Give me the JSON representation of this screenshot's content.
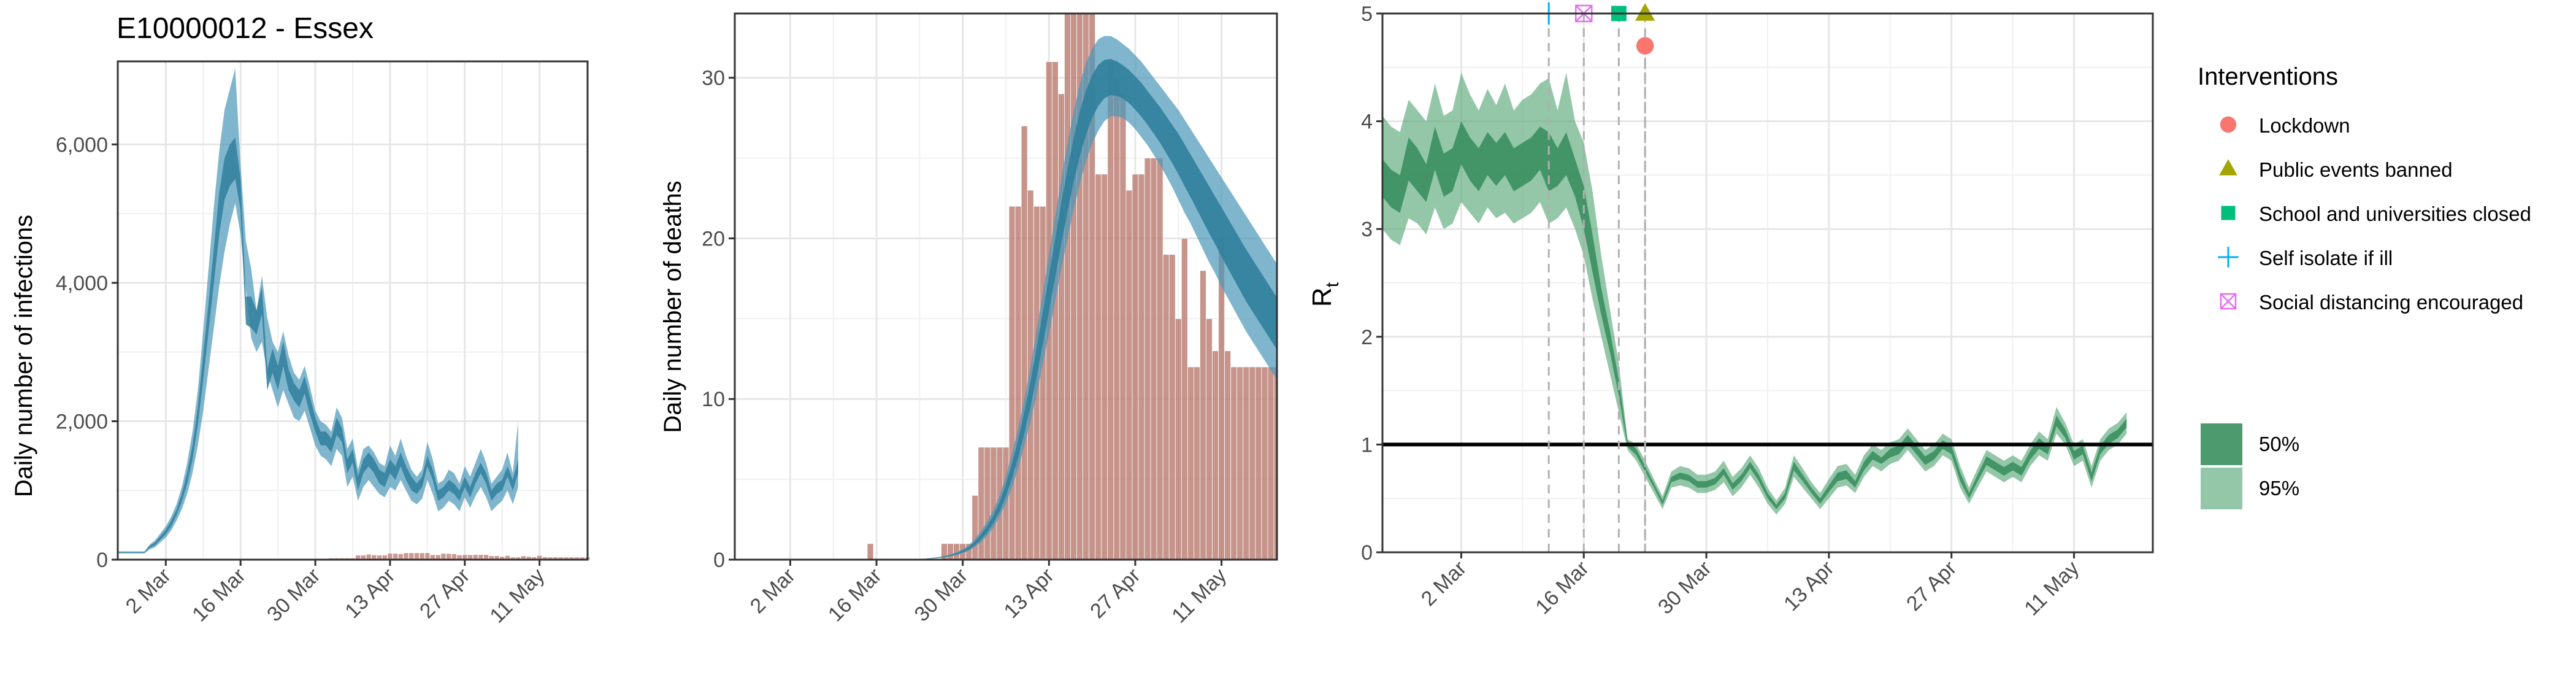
{
  "figure_title": "E10000012 - Essex",
  "date_labels": [
    "2 Mar",
    "16 Mar",
    "30 Mar",
    "13 Apr",
    "27 Apr",
    "11 May"
  ],
  "colors": {
    "infections_band": "#4a97b8",
    "infections_core": "#2f7f9c",
    "deaths_bar": "#b97a6f",
    "rt_band": "#5aa97a",
    "rt_core": "#3a8f5f",
    "vline": "#b0b0b0",
    "lockdown": "#f8766d",
    "public_events": "#a3a500",
    "school": "#00bf7d",
    "self_isolate": "#00b0f6",
    "social_distancing": "#e76bf3"
  },
  "chart_data": [
    {
      "type": "area",
      "id": "infections",
      "title": "E10000012 - Essex",
      "xlabel": "",
      "ylabel": "Daily number of infections",
      "x_start": "2020-02-22",
      "x_ticks": [
        "2 Mar",
        "16 Mar",
        "30 Mar",
        "13 Apr",
        "27 Apr",
        "11 May"
      ],
      "xlim": [
        "2020-02-22",
        "2020-05-20"
      ],
      "ylim": [
        0,
        7200
      ],
      "y_ticks": [
        0,
        2000,
        4000,
        6000
      ],
      "y_tick_labels": [
        "0",
        "2,000",
        "4,000",
        "6,000"
      ],
      "grid": true,
      "band95_low": [
        90,
        90,
        90,
        90,
        90,
        90,
        150,
        180,
        250,
        320,
        420,
        560,
        730,
        950,
        1250,
        1650,
        2150,
        2750,
        3350,
        3950,
        4450,
        4850,
        5150,
        4700,
        3900,
        3200,
        3000,
        3150,
        2700,
        2450,
        2200,
        2450,
        2250,
        2050,
        2000,
        2150,
        1900,
        1650,
        1500,
        1450,
        1350,
        1600,
        1500,
        1050,
        1200,
        850,
        1050,
        1150,
        1050,
        950,
        900,
        1050,
        1000,
        1150,
        1000,
        850,
        800,
        880,
        1150,
        950,
        700,
        750,
        850,
        800,
        700,
        900,
        750,
        920,
        1050,
        900,
        700,
        780,
        850,
        1000,
        800,
        1050
      ],
      "band95_high": [
        120,
        120,
        120,
        120,
        120,
        120,
        220,
        280,
        380,
        480,
        620,
        800,
        1050,
        1400,
        1850,
        2450,
        3300,
        4200,
        5100,
        5900,
        6500,
        6800,
        7100,
        5700,
        4600,
        4200,
        3600,
        4100,
        3500,
        3150,
        3000,
        3300,
        2950,
        2700,
        2600,
        2800,
        2500,
        2150,
        2000,
        1950,
        1850,
        2200,
        2050,
        1600,
        1750,
        1300,
        1600,
        1650,
        1550,
        1400,
        1350,
        1650,
        1500,
        1750,
        1500,
        1300,
        1200,
        1300,
        1700,
        1450,
        1100,
        1150,
        1300,
        1250,
        1100,
        1350,
        1200,
        1400,
        1600,
        1400,
        1100,
        1200,
        1300,
        1550,
        1250,
        2000
      ],
      "band50_low": [
        100,
        100,
        100,
        100,
        100,
        100,
        170,
        210,
        290,
        370,
        480,
        640,
        840,
        1100,
        1450,
        1950,
        2600,
        3300,
        4000,
        4700,
        5200,
        5400,
        5500,
        5050,
        3400,
        3350,
        3250,
        3550,
        2450,
        2700,
        2450,
        2800,
        2450,
        2300,
        2200,
        2400,
        2100,
        1850,
        1650,
        1650,
        1550,
        1800,
        1700,
        1250,
        1400,
        1000,
        1250,
        1350,
        1250,
        1100,
        1050,
        1250,
        1150,
        1350,
        1150,
        1000,
        950,
        1050,
        1350,
        1150,
        850,
        900,
        1000,
        950,
        850,
        1050,
        900,
        1100,
        1250,
        1100,
        850,
        950,
        1000,
        1200,
        1000,
        1250
      ],
      "band50_high": [
        110,
        110,
        110,
        110,
        110,
        110,
        200,
        250,
        340,
        430,
        560,
        720,
        950,
        1250,
        1650,
        2200,
        2950,
        3700,
        4500,
        5300,
        5800,
        6000,
        6100,
        5500,
        3800,
        3800,
        3600,
        3950,
        2750,
        3050,
        2800,
        3150,
        2750,
        2550,
        2450,
        2650,
        2350,
        2050,
        1850,
        1850,
        1750,
        2050,
        1900,
        1450,
        1600,
        1200,
        1450,
        1550,
        1450,
        1300,
        1250,
        1450,
        1350,
        1550,
        1350,
        1200,
        1100,
        1200,
        1500,
        1300,
        1000,
        1050,
        1150,
        1100,
        1000,
        1200,
        1050,
        1250,
        1400,
        1250,
        1000,
        1100,
        1150,
        1350,
        1150,
        1450
      ]
    },
    {
      "type": "bar",
      "id": "deaths",
      "xlabel": "",
      "ylabel": "Daily number of deaths",
      "x_start": "2020-02-22",
      "x_ticks": [
        "2 Mar",
        "16 Mar",
        "30 Mar",
        "13 Apr",
        "27 Apr",
        "11 May"
      ],
      "xlim": [
        "2020-02-22",
        "2020-05-20"
      ],
      "ylim": [
        0,
        34
      ],
      "y_ticks": [
        0,
        10,
        20,
        30
      ],
      "grid": true,
      "bar_values": [
        0,
        0,
        0,
        0,
        0,
        0,
        0,
        0,
        0,
        0,
        0,
        0,
        0,
        0,
        0,
        0,
        0,
        0,
        0,
        0,
        0,
        0,
        1,
        0,
        0,
        0,
        0,
        0,
        0,
        0,
        0,
        0,
        0,
        0,
        1,
        1,
        1,
        1,
        1,
        4,
        7,
        7,
        7,
        7,
        7,
        22,
        22,
        27,
        23,
        22,
        22,
        31,
        31,
        29,
        34,
        34,
        34,
        34,
        34,
        24,
        24,
        31,
        30,
        29,
        23,
        24,
        24,
        25,
        25,
        25,
        19,
        19,
        15,
        20,
        12,
        12,
        18,
        15,
        13,
        20,
        13,
        12,
        12,
        12,
        12,
        12,
        12,
        12,
        12
      ],
      "curve_mean": [
        0,
        0,
        0,
        0,
        0,
        0,
        0,
        0,
        0,
        0,
        0,
        0,
        0,
        0,
        0,
        0,
        0,
        0,
        0,
        0,
        0,
        0,
        0,
        0,
        0,
        0,
        0,
        0,
        0,
        0.02,
        0.03,
        0.05,
        0.08,
        0.12,
        0.17,
        0.25,
        0.36,
        0.5,
        0.7,
        1.0,
        1.4,
        1.9,
        2.5,
        3.3,
        4.3,
        5.5,
        6.9,
        8.5,
        10.3,
        12.3,
        14.4,
        16.6,
        18.8,
        21.0,
        23.0,
        24.9,
        26.5,
        27.8,
        28.8,
        29.5,
        29.9,
        30.0,
        29.9,
        29.7,
        29.4,
        29.0,
        28.6,
        28.1,
        27.6,
        27.1,
        26.5,
        25.9,
        25.3,
        24.6,
        23.9,
        23.2,
        22.5,
        21.8,
        21.1,
        20.4,
        19.7,
        19.0,
        18.3,
        17.6,
        17.0,
        16.4,
        15.8,
        15.2,
        14.6,
        14.1
      ],
      "curve_low": [
        0,
        0,
        0,
        0,
        0,
        0,
        0,
        0,
        0,
        0,
        0,
        0,
        0,
        0,
        0,
        0,
        0,
        0,
        0,
        0,
        0,
        0,
        0,
        0,
        0,
        0,
        0,
        0,
        0,
        0.01,
        0.02,
        0.04,
        0.06,
        0.09,
        0.13,
        0.2,
        0.28,
        0.4,
        0.55,
        0.8,
        1.1,
        1.5,
        2.0,
        2.7,
        3.5,
        4.5,
        5.7,
        7.1,
        8.6,
        10.3,
        12.2,
        14.1,
        16.1,
        18.1,
        20.0,
        21.8,
        23.4,
        24.8,
        25.9,
        26.7,
        27.3,
        27.6,
        27.6,
        27.5,
        27.2,
        26.8,
        26.3,
        25.8,
        25.2,
        24.6,
        23.9,
        23.2,
        22.4,
        21.6,
        20.9,
        20.1,
        19.3,
        18.5,
        17.8,
        17.0,
        16.3,
        15.6,
        14.9,
        14.2,
        13.6,
        13.0,
        12.4,
        11.8,
        11.2,
        10.7
      ],
      "curve_high": [
        0,
        0,
        0,
        0,
        0,
        0,
        0,
        0,
        0,
        0,
        0,
        0,
        0,
        0,
        0,
        0,
        0,
        0,
        0,
        0,
        0,
        0,
        0,
        0,
        0,
        0,
        0,
        0,
        0,
        0.03,
        0.05,
        0.07,
        0.11,
        0.16,
        0.23,
        0.33,
        0.47,
        0.65,
        0.9,
        1.3,
        1.8,
        2.4,
        3.1,
        4.0,
        5.2,
        6.6,
        8.2,
        10.0,
        12.0,
        14.3,
        16.6,
        19.0,
        21.4,
        23.7,
        25.9,
        27.9,
        29.6,
        30.9,
        31.8,
        32.4,
        32.6,
        32.6,
        32.4,
        32.1,
        31.8,
        31.4,
        31.0,
        30.5,
        30.0,
        29.5,
        29.0,
        28.5,
        28.0,
        27.4,
        26.8,
        26.2,
        25.6,
        25.0,
        24.4,
        23.8,
        23.2,
        22.6,
        22.0,
        21.4,
        20.8,
        20.2,
        19.6,
        19.0,
        18.4,
        17.8
      ]
    },
    {
      "type": "area",
      "id": "rt",
      "xlabel": "",
      "ylabel": "R",
      "ylabel_subscript": "t",
      "x_start": "2020-02-22",
      "x_ticks": [
        "2 Mar",
        "16 Mar",
        "30 Mar",
        "13 Apr",
        "27 Apr",
        "11 May"
      ],
      "xlim": [
        "2020-02-22",
        "2020-05-20"
      ],
      "ylim": [
        0,
        5
      ],
      "y_ticks": [
        0,
        1,
        2,
        3,
        4,
        5
      ],
      "grid": true,
      "reference_line": 1,
      "band95_low": [
        3.0,
        2.9,
        2.85,
        3.1,
        3.05,
        2.95,
        3.2,
        3.0,
        3.05,
        3.25,
        3.15,
        3.05,
        3.2,
        3.1,
        3.15,
        3.05,
        3.1,
        3.15,
        3.25,
        3.05,
        3.1,
        3.2,
        3.0,
        2.75,
        2.35,
        2.0,
        1.65,
        1.3,
        0.95,
        0.85,
        0.7,
        0.55,
        0.4,
        0.6,
        0.62,
        0.6,
        0.55,
        0.55,
        0.58,
        0.65,
        0.52,
        0.6,
        0.72,
        0.6,
        0.45,
        0.35,
        0.45,
        0.7,
        0.6,
        0.5,
        0.4,
        0.5,
        0.6,
        0.62,
        0.55,
        0.7,
        0.8,
        0.75,
        0.82,
        0.85,
        0.95,
        0.85,
        0.75,
        0.8,
        0.9,
        0.85,
        0.6,
        0.45,
        0.6,
        0.75,
        0.7,
        0.65,
        0.7,
        0.65,
        0.8,
        0.9,
        0.85,
        1.1,
        1.0,
        0.8,
        0.85,
        0.6,
        0.85,
        0.95,
        1.0,
        1.1
      ],
      "band95_high": [
        4.05,
        3.95,
        3.9,
        4.2,
        4.1,
        4.0,
        4.35,
        4.05,
        4.1,
        4.45,
        4.25,
        4.1,
        4.3,
        4.15,
        4.35,
        4.1,
        4.2,
        4.25,
        4.35,
        4.4,
        4.1,
        4.45,
        4.0,
        3.8,
        3.35,
        2.75,
        2.25,
        1.75,
        1.05,
        1.0,
        0.85,
        0.68,
        0.52,
        0.75,
        0.8,
        0.78,
        0.72,
        0.72,
        0.75,
        0.85,
        0.7,
        0.78,
        0.9,
        0.78,
        0.6,
        0.48,
        0.6,
        0.9,
        0.78,
        0.65,
        0.55,
        0.68,
        0.8,
        0.82,
        0.72,
        0.9,
        1.0,
        0.95,
        1.02,
        1.05,
        1.15,
        1.05,
        0.95,
        1.0,
        1.1,
        1.05,
        0.8,
        0.6,
        0.78,
        0.95,
        0.9,
        0.85,
        0.9,
        0.85,
        1.0,
        1.12,
        1.05,
        1.35,
        1.2,
        1.0,
        1.05,
        0.8,
        1.05,
        1.15,
        1.2,
        1.3
      ],
      "band50_low": [
        3.3,
        3.2,
        3.15,
        3.45,
        3.35,
        3.25,
        3.55,
        3.3,
        3.35,
        3.6,
        3.45,
        3.35,
        3.5,
        3.4,
        3.5,
        3.35,
        3.4,
        3.45,
        3.55,
        3.35,
        3.4,
        3.5,
        3.3,
        3.0,
        2.6,
        2.2,
        1.85,
        1.45,
        0.98,
        0.9,
        0.75,
        0.6,
        0.44,
        0.65,
        0.68,
        0.66,
        0.6,
        0.6,
        0.63,
        0.72,
        0.58,
        0.66,
        0.78,
        0.66,
        0.5,
        0.4,
        0.5,
        0.76,
        0.66,
        0.55,
        0.45,
        0.56,
        0.66,
        0.68,
        0.6,
        0.76,
        0.86,
        0.82,
        0.88,
        0.91,
        1.01,
        0.91,
        0.81,
        0.86,
        0.96,
        0.91,
        0.66,
        0.5,
        0.66,
        0.81,
        0.76,
        0.71,
        0.76,
        0.71,
        0.86,
        0.96,
        0.91,
        1.17,
        1.06,
        0.86,
        0.91,
        0.66,
        0.91,
        1.01,
        1.06,
        1.16
      ],
      "band50_high": [
        3.65,
        3.55,
        3.5,
        3.85,
        3.75,
        3.6,
        3.95,
        3.7,
        3.75,
        4.0,
        3.85,
        3.75,
        3.9,
        3.8,
        3.9,
        3.75,
        3.8,
        3.85,
        3.95,
        3.9,
        3.75,
        3.9,
        3.65,
        3.4,
        2.95,
        2.45,
        2.05,
        1.6,
        1.03,
        0.96,
        0.8,
        0.64,
        0.48,
        0.7,
        0.74,
        0.72,
        0.66,
        0.66,
        0.69,
        0.78,
        0.64,
        0.72,
        0.84,
        0.72,
        0.55,
        0.44,
        0.55,
        0.84,
        0.72,
        0.6,
        0.5,
        0.62,
        0.74,
        0.76,
        0.66,
        0.84,
        0.94,
        0.88,
        0.96,
        0.99,
        1.09,
        0.99,
        0.89,
        0.94,
        1.04,
        0.99,
        0.74,
        0.55,
        0.72,
        0.89,
        0.84,
        0.79,
        0.84,
        0.79,
        0.94,
        1.06,
        0.99,
        1.27,
        1.14,
        0.94,
        0.99,
        0.74,
        0.99,
        1.09,
        1.14,
        1.24
      ],
      "interventions": [
        {
          "label": "Self isolate if ill",
          "date": "2020-03-12",
          "marker": "plus",
          "level": 5.0
        },
        {
          "label": "Social distancing encouraged",
          "date": "2020-03-16",
          "marker": "boxx",
          "level": 5.0
        },
        {
          "label": "School and universities closed",
          "date": "2020-03-20",
          "marker": "square",
          "level": 5.0
        },
        {
          "label": "Public events banned",
          "date": "2020-03-23",
          "marker": "triangle",
          "level": 5.0
        },
        {
          "label": "Lockdown",
          "date": "2020-03-23",
          "marker": "circle",
          "level": 4.7
        }
      ]
    }
  ],
  "legend": {
    "interventions_title": "Interventions",
    "interventions": [
      {
        "label": "Lockdown",
        "marker": "circle",
        "color_key": "lockdown"
      },
      {
        "label": "Public events banned",
        "marker": "triangle",
        "color_key": "public_events"
      },
      {
        "label": "School and universities closed",
        "marker": "square",
        "color_key": "school"
      },
      {
        "label": "Self isolate if ill",
        "marker": "plus",
        "color_key": "self_isolate"
      },
      {
        "label": "Social distancing encouraged",
        "marker": "boxx",
        "color_key": "social_distancing"
      }
    ],
    "bands": [
      {
        "label": "50%",
        "color_key": "rt_core"
      },
      {
        "label": "95%",
        "color_key": "rt_band"
      }
    ]
  }
}
